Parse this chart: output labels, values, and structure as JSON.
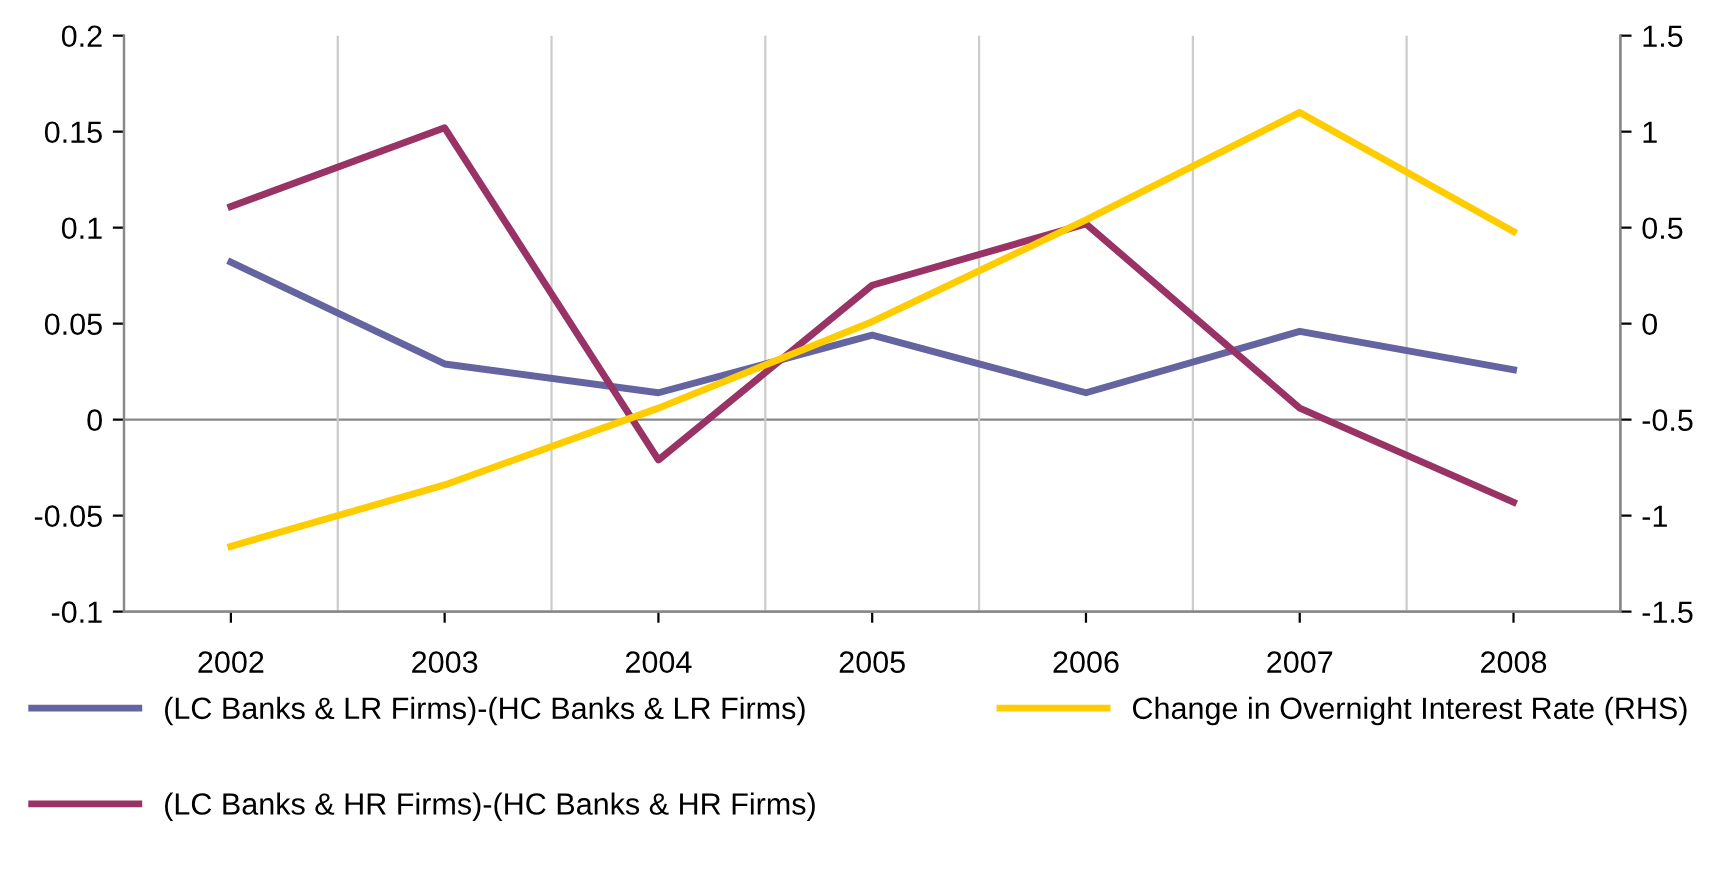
{
  "chart_data": {
    "type": "line",
    "categories": [
      "2002",
      "2003",
      "2004",
      "2005",
      "2006",
      "2007",
      "2008"
    ],
    "series": [
      {
        "name": "(LC Banks & LR Firms)-(HC Banks & LR Firms)",
        "color": "#6464a0",
        "values": [
          0.082,
          0.029,
          0.014,
          0.044,
          0.014,
          0.046,
          0.026
        ]
      },
      {
        "name": "(LC Banks & HR Firms)-(HC Banks & HR Firms)",
        "color": "#993366",
        "values": [
          0.111,
          0.152,
          -0.021,
          0.07,
          0.102,
          0.006,
          -0.043
        ]
      },
      {
        "name": "Change in Overnight Interest Rate (RHS)",
        "color": "#ffcc00",
        "axis": "y2",
        "values": [
          -1.16,
          -0.84,
          -0.44,
          0.01,
          0.54,
          1.1,
          0.48
        ]
      }
    ],
    "ylim": [
      -0.1,
      0.2
    ],
    "yticks": [
      -0.1,
      -0.05,
      0,
      0.05,
      0.1,
      0.15,
      0.2
    ],
    "y2lim": [
      -1.5,
      1.5
    ],
    "y2ticks": [
      -1.5,
      -1,
      -0.5,
      0,
      0.5,
      1,
      1.5
    ],
    "grid": "x",
    "legend": "bottom",
    "marker": "none",
    "line_style": "solid"
  }
}
